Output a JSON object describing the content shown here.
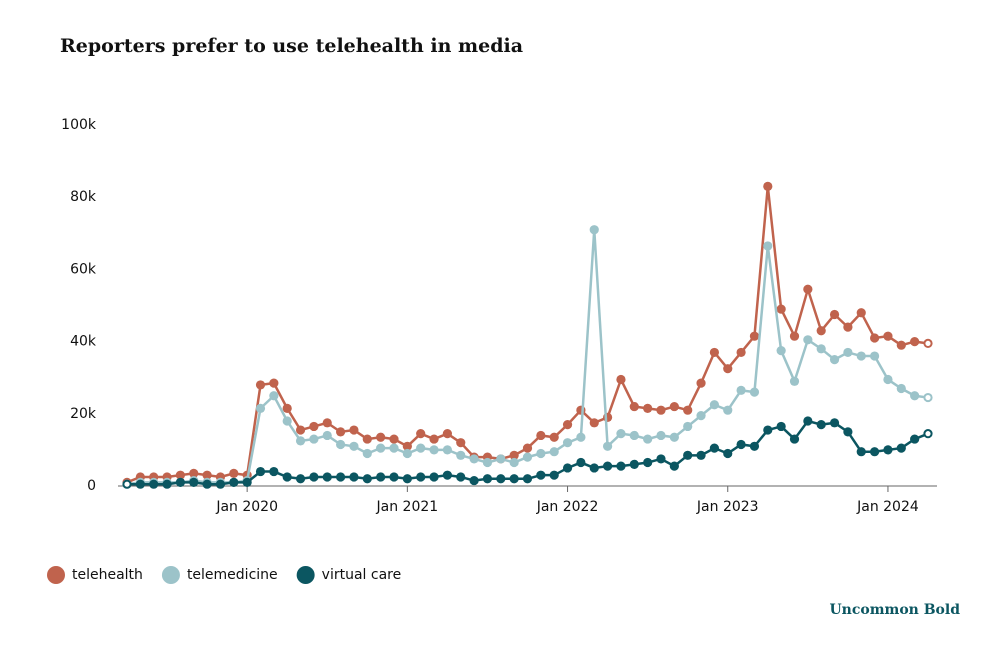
{
  "chart_data": {
    "type": "line",
    "title": "Reporters prefer to use telehealth in media",
    "x": [
      "2019-04",
      "2019-05",
      "2019-06",
      "2019-07",
      "2019-08",
      "2019-09",
      "2019-10",
      "2019-11",
      "2019-12",
      "2020-01",
      "2020-02",
      "2020-03",
      "2020-04",
      "2020-05",
      "2020-06",
      "2020-07",
      "2020-08",
      "2020-09",
      "2020-10",
      "2020-11",
      "2020-12",
      "2021-01",
      "2021-02",
      "2021-03",
      "2021-04",
      "2021-05",
      "2021-06",
      "2021-07",
      "2021-08",
      "2021-09",
      "2021-10",
      "2021-11",
      "2021-12",
      "2022-01",
      "2022-02",
      "2022-03",
      "2022-04",
      "2022-05",
      "2022-06",
      "2022-07",
      "2022-08",
      "2022-09",
      "2022-10",
      "2022-11",
      "2022-12",
      "2023-01",
      "2023-02",
      "2023-03",
      "2023-04",
      "2023-05",
      "2023-06",
      "2023-07",
      "2023-08",
      "2023-09",
      "2023-10",
      "2023-11",
      "2023-12",
      "2024-01",
      "2024-02",
      "2024-03",
      "2024-04"
    ],
    "series": [
      {
        "name": "telehealth",
        "color": "#c0634d",
        "values": [
          1000,
          2500,
          2500,
          2500,
          3000,
          3500,
          3000,
          2500,
          3500,
          3000,
          28000,
          28500,
          21500,
          15500,
          16500,
          17500,
          15000,
          15500,
          13000,
          13500,
          13000,
          11000,
          14500,
          13000,
          14500,
          12000,
          8000,
          8000,
          7500,
          8500,
          10500,
          14000,
          13500,
          17000,
          21000,
          17500,
          19000,
          29500,
          22000,
          21500,
          21000,
          22000,
          21000,
          28500,
          37000,
          32500,
          37000,
          41500,
          83000,
          49000,
          41500,
          54500,
          43000,
          47500,
          44000,
          48000,
          41000,
          41500,
          39000,
          40000,
          39500
        ]
      },
      {
        "name": "telemedicine",
        "color": "#9cc3c9",
        "values": [
          500,
          1000,
          1000,
          1000,
          1000,
          1500,
          1000,
          1000,
          1000,
          1500,
          21500,
          25000,
          18000,
          12500,
          13000,
          14000,
          11500,
          11000,
          9000,
          10500,
          10500,
          9000,
          10500,
          10000,
          10000,
          8500,
          7500,
          6500,
          7500,
          6500,
          8000,
          9000,
          9500,
          12000,
          13500,
          71000,
          11000,
          14500,
          14000,
          13000,
          14000,
          13500,
          16500,
          19500,
          22500,
          21000,
          26500,
          26000,
          66500,
          37500,
          29000,
          40500,
          38000,
          35000,
          37000,
          36000,
          36000,
          29500,
          27000,
          25000,
          24500
        ]
      },
      {
        "name": "virtual care",
        "color": "#0b5661",
        "values": [
          500,
          500,
          500,
          500,
          1000,
          1000,
          500,
          500,
          1000,
          1000,
          4000,
          4000,
          2500,
          2000,
          2500,
          2500,
          2500,
          2500,
          2000,
          2500,
          2500,
          2000,
          2500,
          2500,
          3000,
          2500,
          1500,
          2000,
          2000,
          2000,
          2000,
          3000,
          3000,
          5000,
          6500,
          5000,
          5500,
          5500,
          6000,
          6500,
          7500,
          5500,
          8500,
          8500,
          10500,
          9000,
          11500,
          11000,
          15500,
          16500,
          13000,
          18000,
          17000,
          17500,
          15000,
          9500,
          9500,
          10000,
          10500,
          13000,
          14500
        ]
      }
    ],
    "ylim": [
      0,
      100000
    ],
    "yticks": [
      0,
      {
        "value": 20000,
        "label": "20k"
      },
      {
        "value": 40000,
        "label": "40k"
      },
      {
        "value": 60000,
        "label": "60k"
      },
      {
        "value": 80000,
        "label": "80k"
      },
      {
        "value": 100000,
        "label": "100k"
      }
    ],
    "xticks": [
      {
        "value": "2020-01",
        "label": "Jan 2020"
      },
      {
        "value": "2021-01",
        "label": "Jan 2021"
      },
      {
        "value": "2022-01",
        "label": "Jan 2022"
      },
      {
        "value": "2023-01",
        "label": "Jan 2023"
      },
      {
        "value": "2024-01",
        "label": "Jan 2024"
      }
    ],
    "grid": false,
    "credit": "Uncommon Bold"
  }
}
